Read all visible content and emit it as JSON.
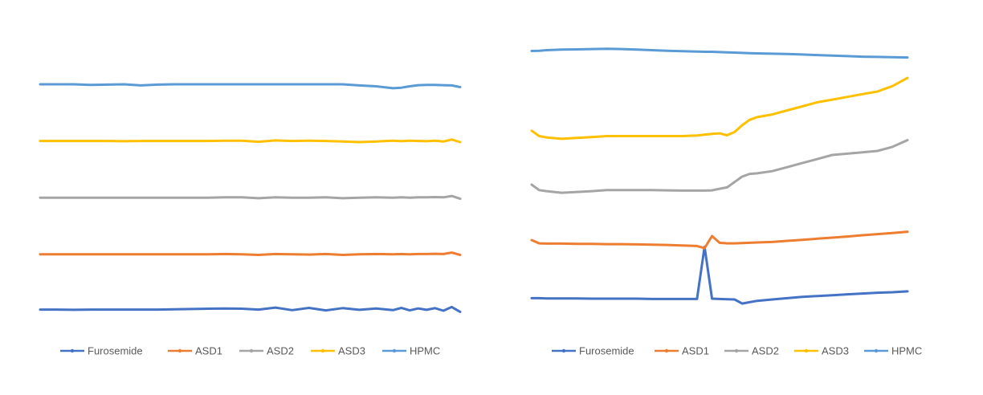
{
  "chart_data": [
    {
      "type": "line",
      "title": "",
      "xlabel": "",
      "ylabel": "",
      "axes_visible": false,
      "grid": false,
      "legend_position": "bottom",
      "x": [
        0,
        4,
        8,
        12,
        16,
        20,
        24,
        28,
        32,
        36,
        40,
        44,
        48,
        52,
        56,
        60,
        64,
        68,
        72,
        76,
        80,
        84,
        86,
        88,
        90,
        92,
        94,
        96,
        98,
        100
      ],
      "series": [
        {
          "name": "Furosemide",
          "color": "#4472C4",
          "values": [
            0.5,
            0.5,
            0.4,
            0.5,
            0.5,
            0.5,
            0.5,
            0.5,
            0.6,
            0.7,
            0.8,
            0.9,
            0.8,
            0.5,
            1.2,
            0.3,
            1.1,
            0.2,
            1.0,
            0.4,
            0.9,
            0.3,
            1.1,
            0.2,
            0.9,
            0.4,
            1.0,
            0.1,
            1.4,
            -0.3
          ]
        },
        {
          "name": "ASD1",
          "color": "#ED7D31",
          "values": [
            20.0,
            20.0,
            20.0,
            20.0,
            20.0,
            20.0,
            20.0,
            20.0,
            20.0,
            20.0,
            20.0,
            20.1,
            20.0,
            19.8,
            20.1,
            20.0,
            19.9,
            20.1,
            19.8,
            20.0,
            20.1,
            20.0,
            20.1,
            20.0,
            20.1,
            20.1,
            20.2,
            20.1,
            20.6,
            19.8
          ]
        },
        {
          "name": "ASD2",
          "color": "#A5A5A5",
          "values": [
            40.0,
            40.0,
            40.0,
            40.0,
            40.0,
            40.0,
            40.0,
            40.0,
            40.0,
            40.0,
            40.0,
            40.1,
            40.1,
            39.8,
            40.1,
            40.0,
            40.0,
            40.1,
            39.8,
            40.0,
            40.1,
            40.0,
            40.1,
            40.0,
            40.1,
            40.1,
            40.2,
            40.1,
            40.6,
            39.6
          ]
        },
        {
          "name": "ASD3",
          "color": "#FFC000",
          "values": [
            60.0,
            60.0,
            60.0,
            60.0,
            60.0,
            59.9,
            60.0,
            60.0,
            60.0,
            60.0,
            60.0,
            60.1,
            60.1,
            59.7,
            60.2,
            60.0,
            60.1,
            60.0,
            59.8,
            59.6,
            59.8,
            60.1,
            59.9,
            60.1,
            60.0,
            59.9,
            60.1,
            59.8,
            60.5,
            59.6
          ]
        },
        {
          "name": "HPMC",
          "color": "#5B9BD5",
          "values": [
            80.0,
            80.0,
            80.0,
            79.8,
            79.9,
            80.0,
            79.6,
            79.9,
            80.0,
            80.0,
            80.0,
            80.0,
            80.0,
            80.0,
            80.0,
            80.0,
            80.0,
            80.0,
            80.0,
            79.6,
            79.3,
            78.6,
            78.8,
            79.3,
            79.7,
            79.8,
            79.8,
            79.7,
            79.6,
            79.0
          ]
        }
      ]
    },
    {
      "type": "line",
      "title": "",
      "xlabel": "",
      "ylabel": "",
      "axes_visible": false,
      "grid": false,
      "legend_position": "bottom",
      "x": [
        0,
        2,
        4,
        8,
        12,
        16,
        20,
        24,
        28,
        32,
        36,
        40,
        44,
        46,
        48,
        50,
        52,
        54,
        56,
        58,
        60,
        64,
        68,
        72,
        76,
        80,
        84,
        88,
        92,
        96,
        100
      ],
      "series": [
        {
          "name": "Furosemide",
          "color": "#4472C4",
          "values": [
            0.0,
            0.0,
            -0.1,
            -0.1,
            -0.1,
            -0.2,
            -0.2,
            -0.2,
            -0.2,
            -0.3,
            -0.3,
            -0.3,
            -0.3,
            19.0,
            -0.2,
            -0.3,
            -0.4,
            -0.5,
            -2.0,
            -1.5,
            -1.0,
            -0.5,
            0.0,
            0.5,
            0.8,
            1.1,
            1.4,
            1.7,
            2.0,
            2.2,
            2.5
          ]
        },
        {
          "name": "ASD1",
          "color": "#ED7D31",
          "values": [
            21.5,
            20.3,
            20.2,
            20.2,
            20.1,
            20.1,
            20.0,
            20.0,
            19.9,
            19.8,
            19.7,
            19.5,
            19.3,
            18.5,
            23.0,
            20.5,
            20.3,
            20.3,
            20.4,
            20.5,
            20.6,
            20.8,
            21.2,
            21.6,
            22.0,
            22.4,
            22.8,
            23.3,
            23.7,
            24.1,
            24.6
          ]
        },
        {
          "name": "ASD2",
          "color": "#A5A5A5",
          "values": [
            42.0,
            40.0,
            39.6,
            39.0,
            39.3,
            39.6,
            40.0,
            40.0,
            40.0,
            40.0,
            39.9,
            39.8,
            39.8,
            39.8,
            39.9,
            40.5,
            41.0,
            43.0,
            45.0,
            46.0,
            46.2,
            47.0,
            48.5,
            50.0,
            51.5,
            53.0,
            53.5,
            54.0,
            54.5,
            56.0,
            58.5
          ]
        },
        {
          "name": "ASD3",
          "color": "#FFC000",
          "values": [
            62.0,
            60.0,
            59.5,
            59.0,
            59.3,
            59.6,
            60.0,
            60.0,
            60.0,
            60.0,
            60.0,
            60.0,
            60.2,
            60.5,
            60.8,
            61.0,
            60.3,
            61.5,
            64.0,
            66.0,
            67.0,
            68.0,
            69.5,
            71.0,
            72.5,
            73.5,
            74.5,
            75.5,
            76.5,
            78.5,
            81.5
          ]
        },
        {
          "name": "HPMC",
          "color": "#5B9BD5",
          "values": [
            91.5,
            91.6,
            91.8,
            92.0,
            92.1,
            92.2,
            92.3,
            92.2,
            92.0,
            91.8,
            91.6,
            91.4,
            91.3,
            91.2,
            91.2,
            91.1,
            91.0,
            90.9,
            90.8,
            90.7,
            90.6,
            90.5,
            90.4,
            90.2,
            90.0,
            89.8,
            89.6,
            89.4,
            89.3,
            89.2,
            89.1
          ]
        }
      ]
    }
  ]
}
